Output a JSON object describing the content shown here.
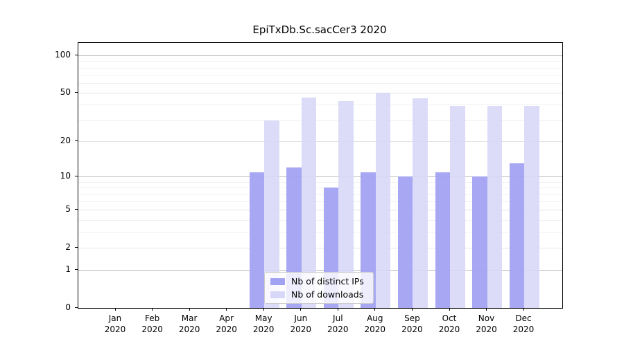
{
  "figure": {
    "background": "#ffffff"
  },
  "chart_data": {
    "type": "bar",
    "title": "EpiTxDb.Sc.sacCer3 2020",
    "categories": [
      "Jan",
      "Feb",
      "Mar",
      "Apr",
      "May",
      "Jun",
      "Jul",
      "Aug",
      "Sep",
      "Oct",
      "Nov",
      "Dec"
    ],
    "year_label": "2020",
    "series": [
      {
        "name": "Nb of distinct IPs",
        "color": "#a2a2f2",
        "values": [
          0,
          0,
          0,
          0,
          11,
          12,
          8,
          11,
          10,
          11,
          10,
          13
        ]
      },
      {
        "name": "Nb of downloads",
        "color": "#d7d7f8",
        "values": [
          0,
          0,
          0,
          0,
          30,
          46,
          43,
          50,
          45,
          39,
          39,
          39
        ]
      }
    ],
    "y_axis": {
      "scale": "log1p",
      "tick_labels": [
        "0",
        "1",
        "2",
        "5",
        "10",
        "20",
        "50",
        "100"
      ],
      "ticks": [
        0,
        1,
        2,
        5,
        10,
        20,
        50,
        100
      ],
      "decade_ticks": [
        1,
        10,
        100
      ],
      "minor_gridlines": [
        3,
        4,
        6,
        7,
        8,
        9,
        30,
        40,
        60,
        70,
        80,
        90
      ],
      "top_value": 126
    },
    "x_axis": {
      "label_line2": "2020"
    },
    "grid": "on",
    "legend_position": "lower-center-inside"
  },
  "legend": {
    "items": [
      {
        "label": "Nb of distinct IPs"
      },
      {
        "label": "Nb of downloads"
      }
    ]
  }
}
